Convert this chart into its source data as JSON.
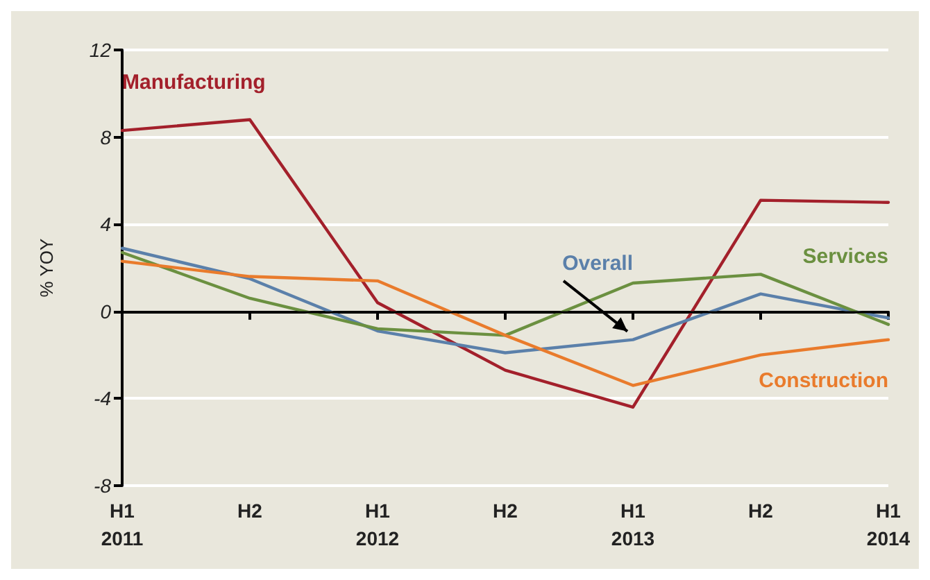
{
  "chart_data": {
    "type": "line",
    "ylabel": "% YOY",
    "categories": [
      "H1\n2011",
      "H2",
      "H1\n2012",
      "H2",
      "H1\n2013",
      "H2",
      "H1\n2014"
    ],
    "series": [
      {
        "name": "Manufacturing",
        "color": "#a3202b",
        "values": [
          8.3,
          8.8,
          0.4,
          -2.7,
          -4.4,
          5.1,
          5.0
        ]
      },
      {
        "name": "Overall",
        "color": "#5b80aa",
        "values": [
          2.9,
          1.5,
          -0.9,
          -1.9,
          -1.3,
          0.8,
          -0.3
        ]
      },
      {
        "name": "Services",
        "color": "#6b9040",
        "values": [
          2.7,
          0.6,
          -0.8,
          -1.1,
          1.3,
          1.7,
          -0.6
        ]
      },
      {
        "name": "Construction",
        "color": "#e97b2c",
        "values": [
          2.3,
          1.6,
          1.4,
          -1.1,
          -3.4,
          -2.0,
          -1.3
        ]
      }
    ],
    "ylim": [
      -8,
      12
    ],
    "yticks": [
      -8,
      -4,
      0,
      4,
      8,
      12
    ],
    "grid": "y",
    "legend": false,
    "marker": "none",
    "line_style": "solid",
    "ref_lines": [
      {
        "axis": "y",
        "value": 0,
        "color": "#000000"
      }
    ]
  }
}
